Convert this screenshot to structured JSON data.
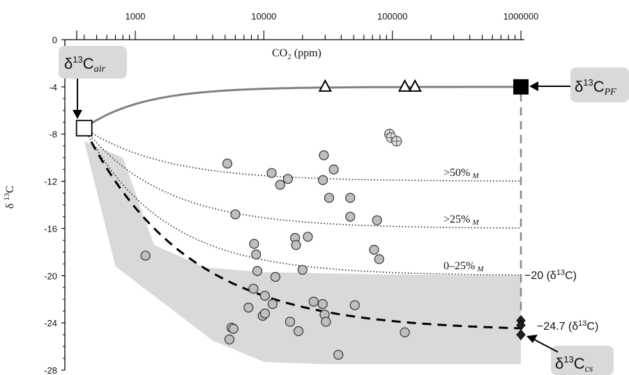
{
  "chart_data": {
    "type": "scatter",
    "x_scale": "log",
    "xlabel": "CO2 (ppm)",
    "ylabel": "δ 13C",
    "xlim": [
      350,
      1000000
    ],
    "ylim": [
      -28,
      0
    ],
    "x_ticks": [
      "1000",
      "10000",
      "100000",
      "1000000"
    ],
    "x_tick_values": [
      1000,
      10000,
      100000,
      1000000
    ],
    "y_ticks": [
      "0",
      "-4",
      "-8",
      "-12",
      "-16",
      "-20",
      "-24",
      "-28"
    ],
    "y_tick_values": [
      0,
      -4,
      -8,
      -12,
      -16,
      -20,
      -24,
      -28
    ],
    "grid": false,
    "series": [
      {
        "marker": "circle-gray",
        "points": [
          [
            5200,
            -10.5
          ],
          [
            6000,
            -14.8
          ],
          [
            8400,
            -17.3
          ],
          [
            8700,
            -18.2
          ],
          [
            8900,
            -19.6
          ],
          [
            8300,
            -21.1
          ],
          [
            7600,
            -22.7
          ],
          [
            10200,
            -21.7
          ],
          [
            9800,
            -23.4
          ],
          [
            10200,
            -23.2
          ],
          [
            11700,
            -22.4
          ],
          [
            12300,
            -20.1
          ],
          [
            11500,
            -11.3
          ],
          [
            13400,
            -12.3
          ],
          [
            15400,
            -11.8
          ],
          [
            17500,
            -16.8
          ],
          [
            17800,
            -17.4
          ],
          [
            20000,
            -19.5
          ],
          [
            22000,
            -16.7
          ],
          [
            24400,
            -22.2
          ],
          [
            28700,
            -22.4
          ],
          [
            29700,
            -23.3
          ],
          [
            30400,
            -23.9
          ],
          [
            29300,
            -9.8
          ],
          [
            28800,
            -11.9
          ],
          [
            32200,
            -13.4
          ],
          [
            35000,
            -11.0
          ],
          [
            47000,
            -13.4
          ],
          [
            47000,
            -15.0
          ],
          [
            51000,
            -22.5
          ],
          [
            72000,
            -17.8
          ],
          [
            76000,
            -15.3
          ],
          [
            79000,
            -18.6
          ],
          [
            5600,
            -24.4
          ],
          [
            5800,
            -24.5
          ],
          [
            5400,
            -25.4
          ],
          [
            16000,
            -23.9
          ],
          [
            18600,
            -24.7
          ],
          [
            38000,
            -26.7
          ],
          [
            125000,
            -24.8
          ],
          [
            1200,
            -18.3
          ]
        ]
      },
      {
        "marker": "circle-cross",
        "points": [
          [
            95000,
            -8.0
          ],
          [
            98000,
            -8.3
          ],
          [
            108000,
            -8.6
          ]
        ]
      },
      {
        "marker": "triangle-open",
        "points": [
          [
            30000,
            -4.0
          ],
          [
            125000,
            -4.0
          ],
          [
            150000,
            -4.0
          ]
        ]
      },
      {
        "marker": "square-filled",
        "points": [
          [
            1000000,
            -4.0
          ]
        ]
      },
      {
        "marker": "square-open",
        "points": [
          [
            400,
            -7.5
          ]
        ]
      },
      {
        "marker": "diamond-filled",
        "points": [
          [
            1000000,
            -23.8
          ],
          [
            1000000,
            -24.2
          ],
          [
            1000000,
            -25.0
          ]
        ]
      }
    ],
    "lines": [
      {
        "style": "solid-gray",
        "from": -7.5,
        "to": -4.0
      },
      {
        "style": "dotted",
        "from": -7.5,
        "to": -12.0,
        "label": ">50%"
      },
      {
        "style": "dotted",
        "from": -7.5,
        "to": -16.0,
        "label": ">25%"
      },
      {
        "style": "dotted",
        "from": -7.5,
        "to": -20.0,
        "label": "0–25%"
      },
      {
        "style": "dashed",
        "from": -7.5,
        "to": -24.7
      }
    ],
    "shaded_region": {
      "color": "#d9d9d9",
      "upper": [
        [
          400,
          -8.6
        ],
        [
          800,
          -10.0
        ],
        [
          1400,
          -17.4
        ],
        [
          3500,
          -19.3
        ],
        [
          10000,
          -19.7
        ],
        [
          100000,
          -19.9
        ],
        [
          1000000,
          -20.0
        ]
      ],
      "lower": [
        [
          1000000,
          -27.5
        ],
        [
          300000,
          -27.5
        ],
        [
          30000,
          -27.5
        ],
        [
          10000,
          -27.3
        ],
        [
          4000,
          -25.5
        ],
        [
          700,
          -19.2
        ]
      ]
    },
    "annotations": {
      "label_50": ">50%",
      "label_25": ">25%",
      "label_0_25": "0–25%",
      "subscript_m": "M",
      "value_20": "−20 (δ",
      "value_20_sup": "13",
      "value_20_end": "C)",
      "value_247": "−24.7 (δ",
      "value_247_sup": "13",
      "value_247_end": "C)"
    },
    "callouts": {
      "air": {
        "delta": "δ",
        "sup": "13",
        "c": "C",
        "sub": "air"
      },
      "pf": {
        "delta": "δ",
        "sup": "13",
        "c": "C",
        "sub": "PF"
      },
      "cs": {
        "delta": "δ",
        "sup": "13",
        "c": "C",
        "sub": "cs"
      }
    }
  }
}
